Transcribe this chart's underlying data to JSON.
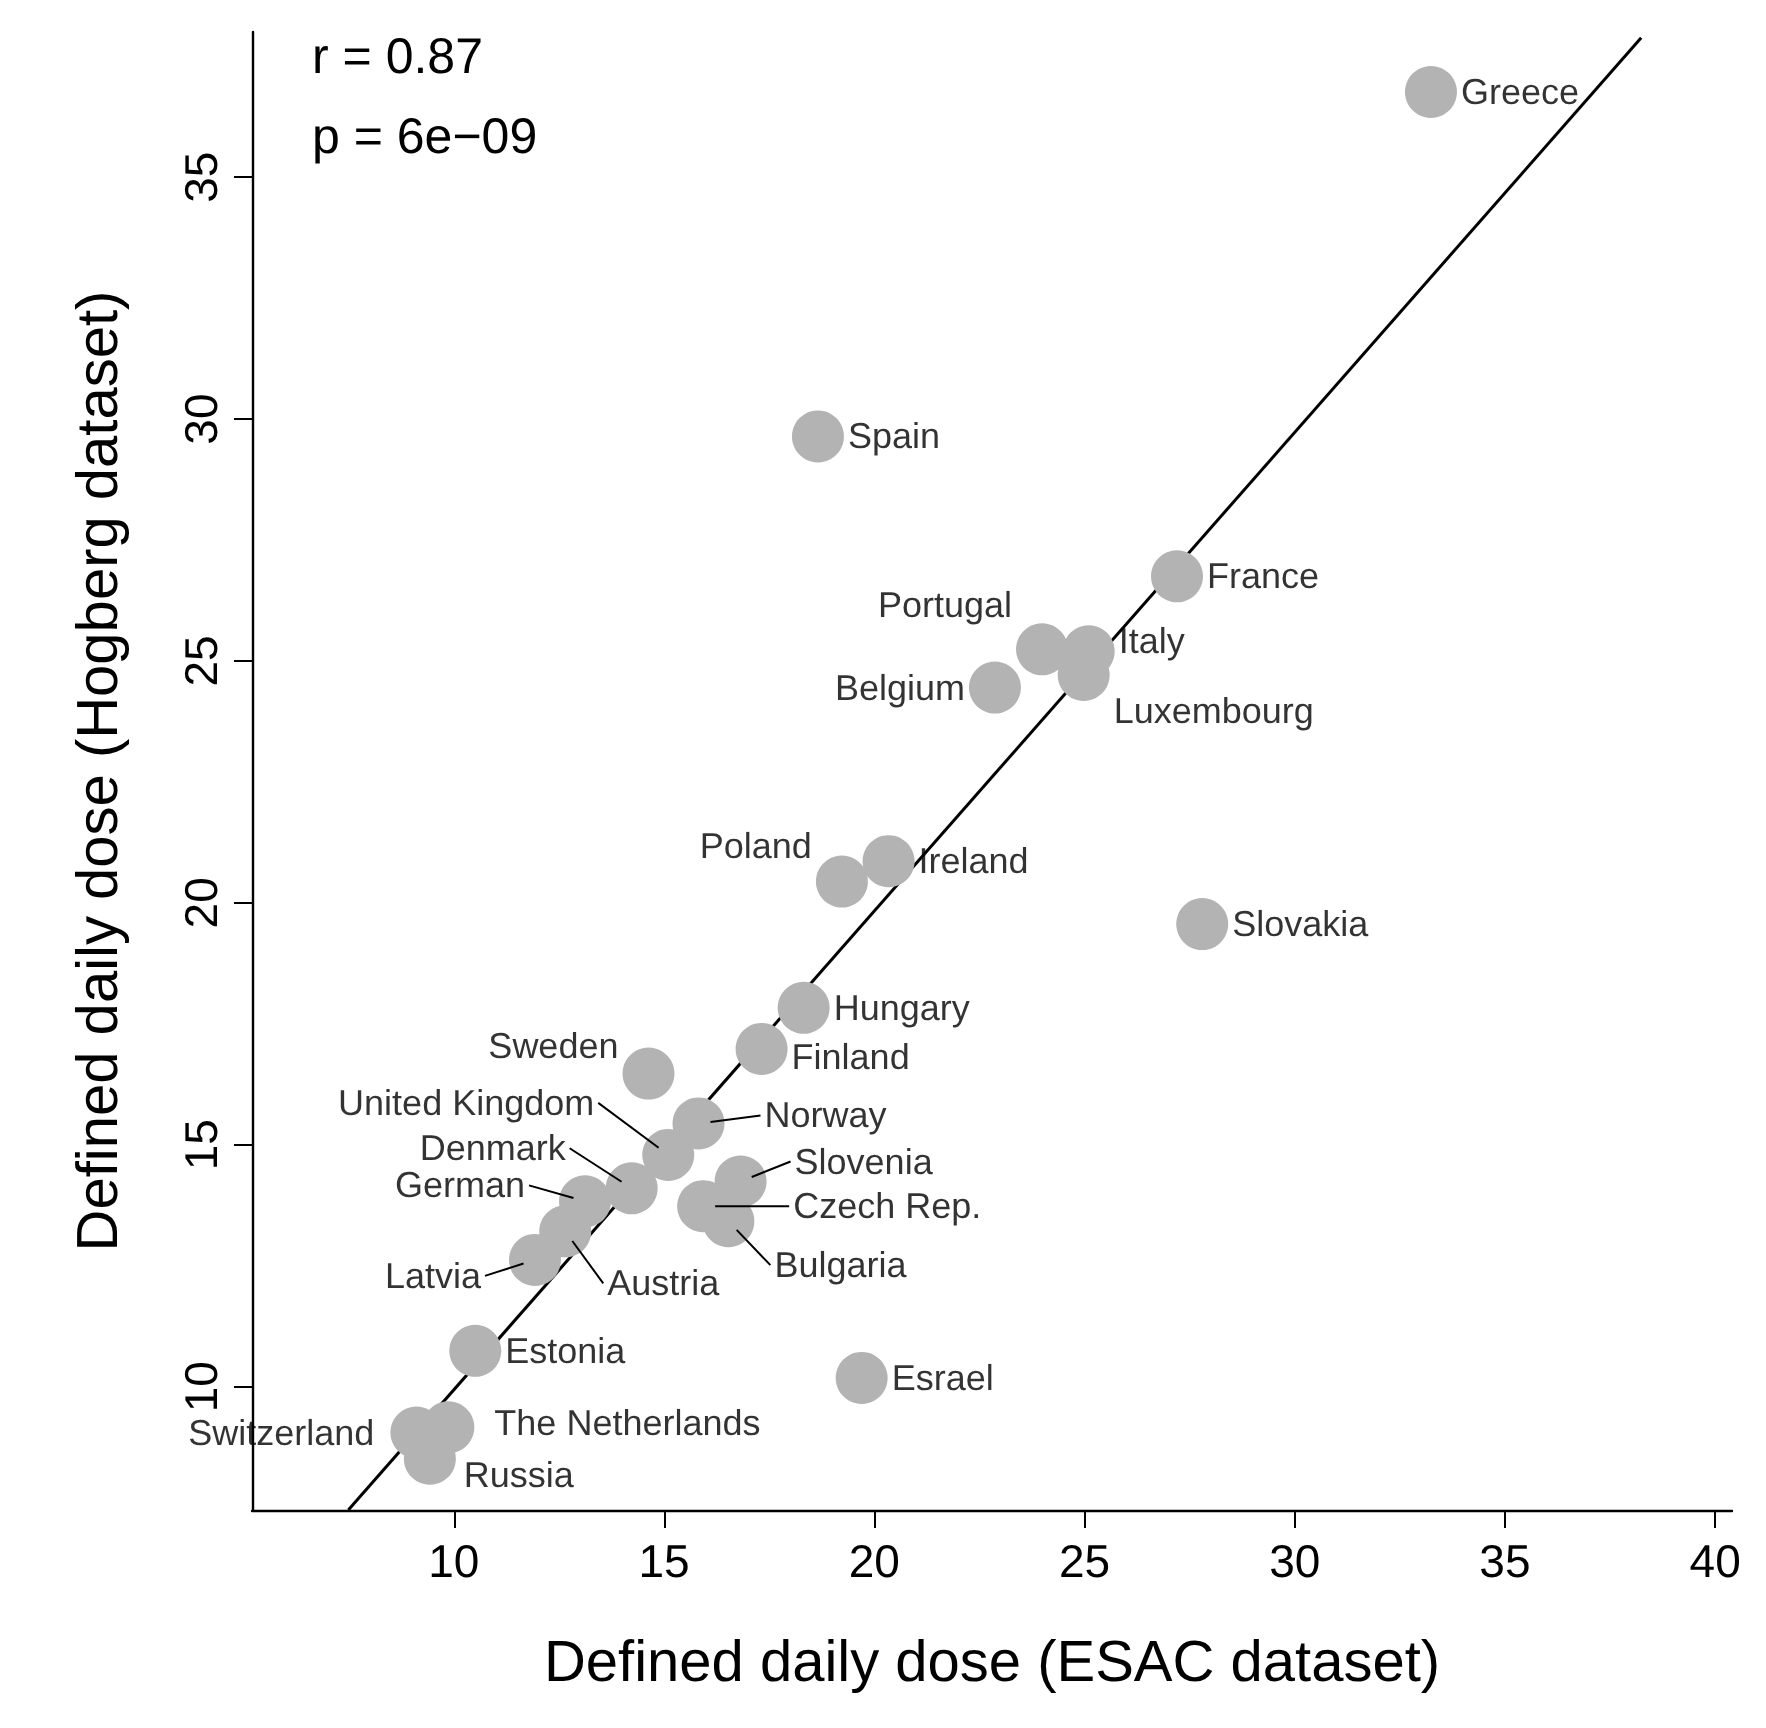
{
  "chart_data": {
    "type": "scatter",
    "xlabel": "Defined daily dose (ESAC dataset)",
    "ylabel": "Defined daily dose (Hogberg dataset)",
    "xlim": [
      5.2,
      40.4
    ],
    "ylim": [
      7.45,
      38.0
    ],
    "xticks": [
      10,
      15,
      20,
      25,
      30,
      35,
      40
    ],
    "yticks": [
      10,
      15,
      20,
      25,
      30,
      35
    ],
    "grid": false,
    "marker": "circle",
    "series": [
      {
        "color": "#b3b3b3",
        "x": [
          33.24,
          18.66,
          27.2,
          23.99,
          25.1,
          24.98,
          22.87,
          19.23,
          20.34,
          27.8,
          18.32,
          17.32,
          14.63,
          15.82,
          15.1,
          14.23,
          13.12,
          12.65,
          11.93,
          16.82,
          15.93,
          16.53,
          10.51,
          19.7,
          9.11,
          9.87,
          9.43
        ],
        "values": [
          36.76,
          29.64,
          26.75,
          25.24,
          25.2,
          24.71,
          24.45,
          20.44,
          20.86,
          19.56,
          17.83,
          16.98,
          16.47,
          15.44,
          14.79,
          14.1,
          13.83,
          13.21,
          12.62,
          14.24,
          13.73,
          13.42,
          10.74,
          10.18,
          9.05,
          9.16,
          8.51
        ]
      },
      {
        "type": "line",
        "color": "#000000",
        "marker": "none",
        "line_style": "solid",
        "x": [
          7.49,
          38.24
        ],
        "values": [
          7.45,
          37.88
        ]
      }
    ],
    "annotations": [
      "r = 0.87",
      "p = 6e−09",
      {
        "text": "Greece",
        "x": 33.24,
        "y": 36.76
      },
      {
        "text": "Spain",
        "x": 18.66,
        "y": 29.64
      },
      {
        "text": "France",
        "x": 27.2,
        "y": 26.75
      },
      {
        "text": "Portugal",
        "x": 23.99,
        "y": 25.24
      },
      {
        "text": "Italy",
        "x": 25.1,
        "y": 25.2
      },
      {
        "text": "Luxembourg",
        "x": 24.98,
        "y": 24.71
      },
      {
        "text": "Belgium",
        "x": 22.87,
        "y": 24.45
      },
      {
        "text": "Poland",
        "x": 19.23,
        "y": 20.44
      },
      {
        "text": "Ireland",
        "x": 20.34,
        "y": 20.86
      },
      {
        "text": "Slovakia",
        "x": 27.8,
        "y": 19.56
      },
      {
        "text": "Hungary",
        "x": 18.32,
        "y": 17.83
      },
      {
        "text": "Finland",
        "x": 17.32,
        "y": 16.98
      },
      {
        "text": "Sweden",
        "x": 14.63,
        "y": 16.47
      },
      {
        "text": "Norway",
        "x": 15.82,
        "y": 15.44
      },
      {
        "text": "United Kingdom",
        "x": 15.1,
        "y": 14.79
      },
      {
        "text": "Denmark",
        "x": 14.23,
        "y": 14.1
      },
      {
        "text": "German",
        "x": 13.12,
        "y": 13.83
      },
      {
        "text": "Austria",
        "x": 12.65,
        "y": 13.21
      },
      {
        "text": "Latvia",
        "x": 11.93,
        "y": 12.62
      },
      {
        "text": "Slovenia",
        "x": 16.82,
        "y": 14.24
      },
      {
        "text": "Czech Rep.",
        "x": 15.93,
        "y": 13.73
      },
      {
        "text": "Bulgaria",
        "x": 16.53,
        "y": 13.42
      },
      {
        "text": "Estonia",
        "x": 10.51,
        "y": 10.74
      },
      {
        "text": "Esrael",
        "x": 19.7,
        "y": 10.18
      },
      {
        "text": "Switzerland",
        "x": 9.11,
        "y": 9.05
      },
      {
        "text": "The Netherlands",
        "x": 9.87,
        "y": 9.16
      },
      {
        "text": "Russia",
        "x": 9.43,
        "y": 8.51
      }
    ]
  }
}
